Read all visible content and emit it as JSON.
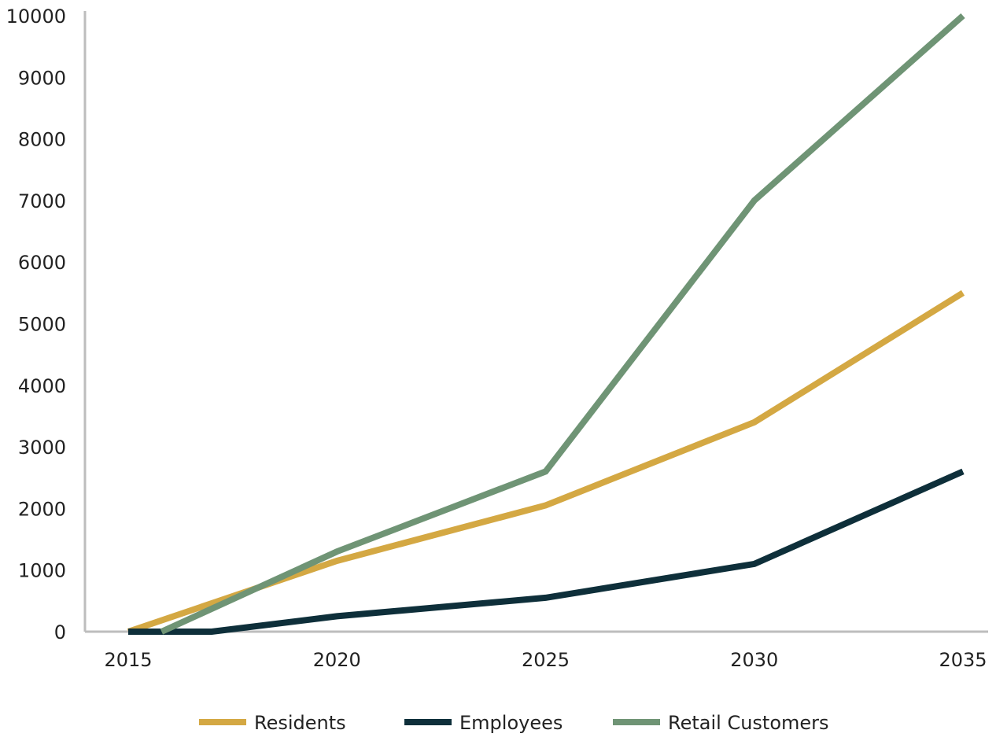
{
  "chart_data": {
    "type": "line",
    "title": "",
    "xlabel": "",
    "ylabel": "",
    "x_ticks": [
      "2015",
      "2020",
      "2025",
      "2030",
      "2035"
    ],
    "y_ticks": [
      "0",
      "1000",
      "2000",
      "3000",
      "4000",
      "5000",
      "6000",
      "7000",
      "8000",
      "9000",
      "10000"
    ],
    "xlim": [
      2015,
      2035
    ],
    "ylim": [
      0,
      10000
    ],
    "grid": false,
    "legend_position": "bottom",
    "series": [
      {
        "name": "Residents",
        "color": "#d4a843",
        "points": [
          [
            2015,
            0
          ],
          [
            2020,
            1150
          ],
          [
            2025,
            2050
          ],
          [
            2030,
            3400
          ],
          [
            2035,
            5500
          ]
        ]
      },
      {
        "name": "Employees",
        "color": "#0e2f3a",
        "points": [
          [
            2015,
            0
          ],
          [
            2017,
            0
          ],
          [
            2020,
            250
          ],
          [
            2025,
            550
          ],
          [
            2030,
            1100
          ],
          [
            2035,
            2600
          ]
        ]
      },
      {
        "name": "Retail Customers",
        "color": "#6f9475",
        "points": [
          [
            2015.8,
            0
          ],
          [
            2020,
            1300
          ],
          [
            2025,
            2600
          ],
          [
            2030,
            7000
          ],
          [
            2035,
            10000
          ]
        ]
      }
    ]
  }
}
